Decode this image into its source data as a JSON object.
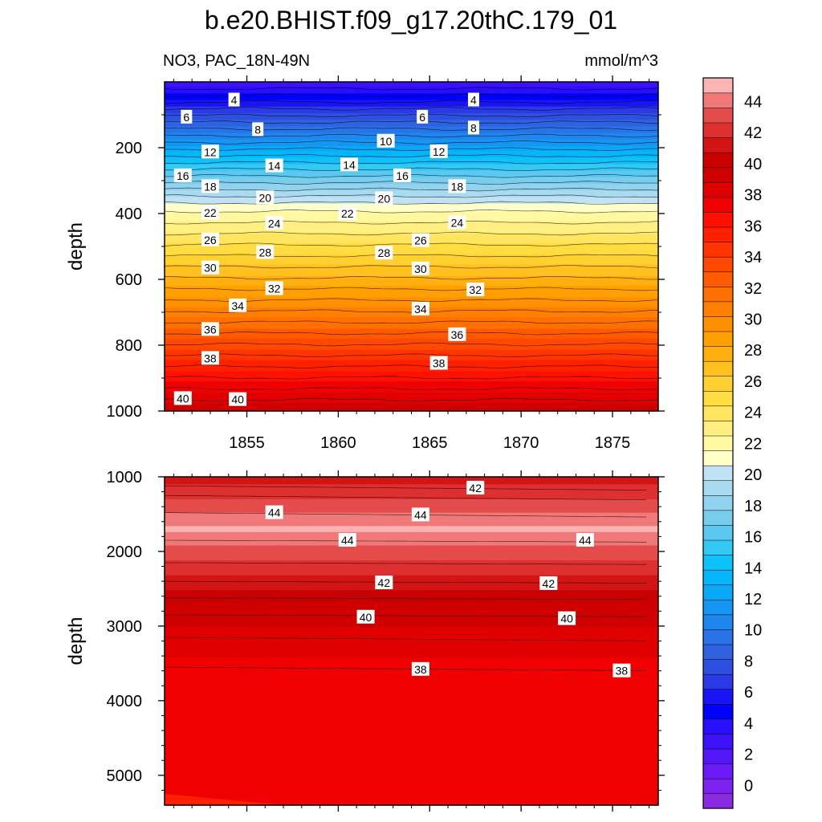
{
  "title": "b.e20.BHIST.f09_g17.20thC.179_01",
  "left_subtitle": "NO3, PAC_18N-49N",
  "right_subtitle": "mmol/m^3",
  "chart_data": [
    {
      "type": "contour",
      "name": "upper-panel",
      "xlabel": "",
      "ylabel": "depth",
      "xlim": [
        1850.5,
        1877.5
      ],
      "ylim": [
        0,
        1000
      ],
      "x_ticks": [
        1855,
        1860,
        1865,
        1870,
        1875
      ],
      "x_tick_labels": [
        "1855",
        "1860",
        "1865",
        "1870",
        "1875"
      ],
      "y_ticks": [
        200,
        400,
        600,
        800,
        1000
      ],
      "y_tick_labels": [
        "200",
        "400",
        "600",
        "800",
        "1000"
      ],
      "contour_labels": [
        {
          "text": "4",
          "x": 1854.3,
          "depth": 55
        },
        {
          "text": "4",
          "x": 1867.4,
          "depth": 55
        },
        {
          "text": "6",
          "x": 1851.7,
          "depth": 107
        },
        {
          "text": "6",
          "x": 1864.6,
          "depth": 107
        },
        {
          "text": "8",
          "x": 1855.6,
          "depth": 145
        },
        {
          "text": "8",
          "x": 1867.4,
          "depth": 140
        },
        {
          "text": "12",
          "x": 1853.0,
          "depth": 213
        },
        {
          "text": "10",
          "x": 1862.6,
          "depth": 180
        },
        {
          "text": "12",
          "x": 1865.5,
          "depth": 212
        },
        {
          "text": "14",
          "x": 1856.5,
          "depth": 255
        },
        {
          "text": "14",
          "x": 1860.6,
          "depth": 252
        },
        {
          "text": "16",
          "x": 1851.5,
          "depth": 285
        },
        {
          "text": "16",
          "x": 1863.5,
          "depth": 285
        },
        {
          "text": "18",
          "x": 1853.0,
          "depth": 318
        },
        {
          "text": "18",
          "x": 1866.5,
          "depth": 318
        },
        {
          "text": "20",
          "x": 1856.0,
          "depth": 352
        },
        {
          "text": "20",
          "x": 1862.5,
          "depth": 355
        },
        {
          "text": "22",
          "x": 1853.0,
          "depth": 398
        },
        {
          "text": "22",
          "x": 1860.5,
          "depth": 400
        },
        {
          "text": "24",
          "x": 1856.5,
          "depth": 430
        },
        {
          "text": "24",
          "x": 1866.5,
          "depth": 428
        },
        {
          "text": "26",
          "x": 1853.0,
          "depth": 480
        },
        {
          "text": "26",
          "x": 1864.5,
          "depth": 482
        },
        {
          "text": "28",
          "x": 1856.0,
          "depth": 518
        },
        {
          "text": "28",
          "x": 1862.5,
          "depth": 520
        },
        {
          "text": "30",
          "x": 1853.0,
          "depth": 565
        },
        {
          "text": "30",
          "x": 1864.5,
          "depth": 568
        },
        {
          "text": "32",
          "x": 1856.5,
          "depth": 628
        },
        {
          "text": "32",
          "x": 1867.5,
          "depth": 632
        },
        {
          "text": "34",
          "x": 1854.5,
          "depth": 680
        },
        {
          "text": "34",
          "x": 1864.5,
          "depth": 690
        },
        {
          "text": "36",
          "x": 1853.0,
          "depth": 752
        },
        {
          "text": "36",
          "x": 1866.5,
          "depth": 768
        },
        {
          "text": "38",
          "x": 1853.0,
          "depth": 840
        },
        {
          "text": "38",
          "x": 1865.5,
          "depth": 855
        },
        {
          "text": "40",
          "x": 1851.5,
          "depth": 962
        },
        {
          "text": "40",
          "x": 1854.5,
          "depth": 965
        }
      ]
    },
    {
      "type": "contour",
      "name": "lower-panel",
      "xlabel": "",
      "ylabel": "depth",
      "xlim": [
        1850.5,
        1877.5
      ],
      "ylim": [
        1000,
        5400
      ],
      "x_ticks": [
        1855,
        1860,
        1865,
        1870,
        1875
      ],
      "y_ticks": [
        1000,
        2000,
        3000,
        4000,
        5000
      ],
      "y_tick_labels": [
        "1000",
        "2000",
        "3000",
        "4000",
        "5000"
      ],
      "contour_labels": [
        {
          "text": "42",
          "x": 1867.5,
          "depth": 1150
        },
        {
          "text": "44",
          "x": 1856.5,
          "depth": 1480
        },
        {
          "text": "44",
          "x": 1864.5,
          "depth": 1510
        },
        {
          "text": "44",
          "x": 1860.5,
          "depth": 1850
        },
        {
          "text": "44",
          "x": 1873.5,
          "depth": 1850
        },
        {
          "text": "42",
          "x": 1862.5,
          "depth": 2420
        },
        {
          "text": "42",
          "x": 1871.5,
          "depth": 2430
        },
        {
          "text": "40",
          "x": 1861.5,
          "depth": 2880
        },
        {
          "text": "40",
          "x": 1872.5,
          "depth": 2900
        },
        {
          "text": "38",
          "x": 1864.5,
          "depth": 3580
        },
        {
          "text": "38",
          "x": 1875.5,
          "depth": 3600
        }
      ]
    },
    {
      "type": "colorbar",
      "name": "colorbar",
      "levels": [
        0,
        2,
        4,
        6,
        8,
        10,
        12,
        14,
        16,
        18,
        20,
        22,
        24,
        26,
        28,
        30,
        32,
        34,
        36,
        38,
        40,
        42,
        44
      ],
      "level_labels": [
        "0",
        "2",
        "4",
        "6",
        "8",
        "10",
        "12",
        "14",
        "16",
        "18",
        "20",
        "22",
        "24",
        "26",
        "28",
        "30",
        "32",
        "34",
        "36",
        "38",
        "40",
        "42",
        "44"
      ],
      "box_step": 1,
      "vmin": -1,
      "vmax": 46,
      "colors": [
        "#8a2be2",
        "#7b22f0",
        "#6a1bf5",
        "#5316f8",
        "#3c12fb",
        "#2a0ffc",
        "#0000ff",
        "#1a14f5",
        "#2a3ae6",
        "#2e4fe0",
        "#2e62e0",
        "#2a72e8",
        "#1f86ee",
        "#1496f2",
        "#0aa8f8",
        "#05b6fa",
        "#10c0f8",
        "#34c8f4",
        "#5ac8f0",
        "#78cdec",
        "#92d2ee",
        "#a8daf0",
        "#c0e2f4",
        "#ffffc8",
        "#fff8a0",
        "#ffee80",
        "#ffe560",
        "#ffdc40",
        "#ffd030",
        "#ffc020",
        "#ffb010",
        "#ffa000",
        "#ff9000",
        "#ff8000",
        "#ff7000",
        "#ff5a00",
        "#ff4800",
        "#ff3400",
        "#ff2000",
        "#ff1000",
        "#f00000",
        "#e00000",
        "#d00000",
        "#c80000",
        "#d21414",
        "#de3030",
        "#e44c4c",
        "#f07878",
        "#fab4b4"
      ]
    }
  ]
}
